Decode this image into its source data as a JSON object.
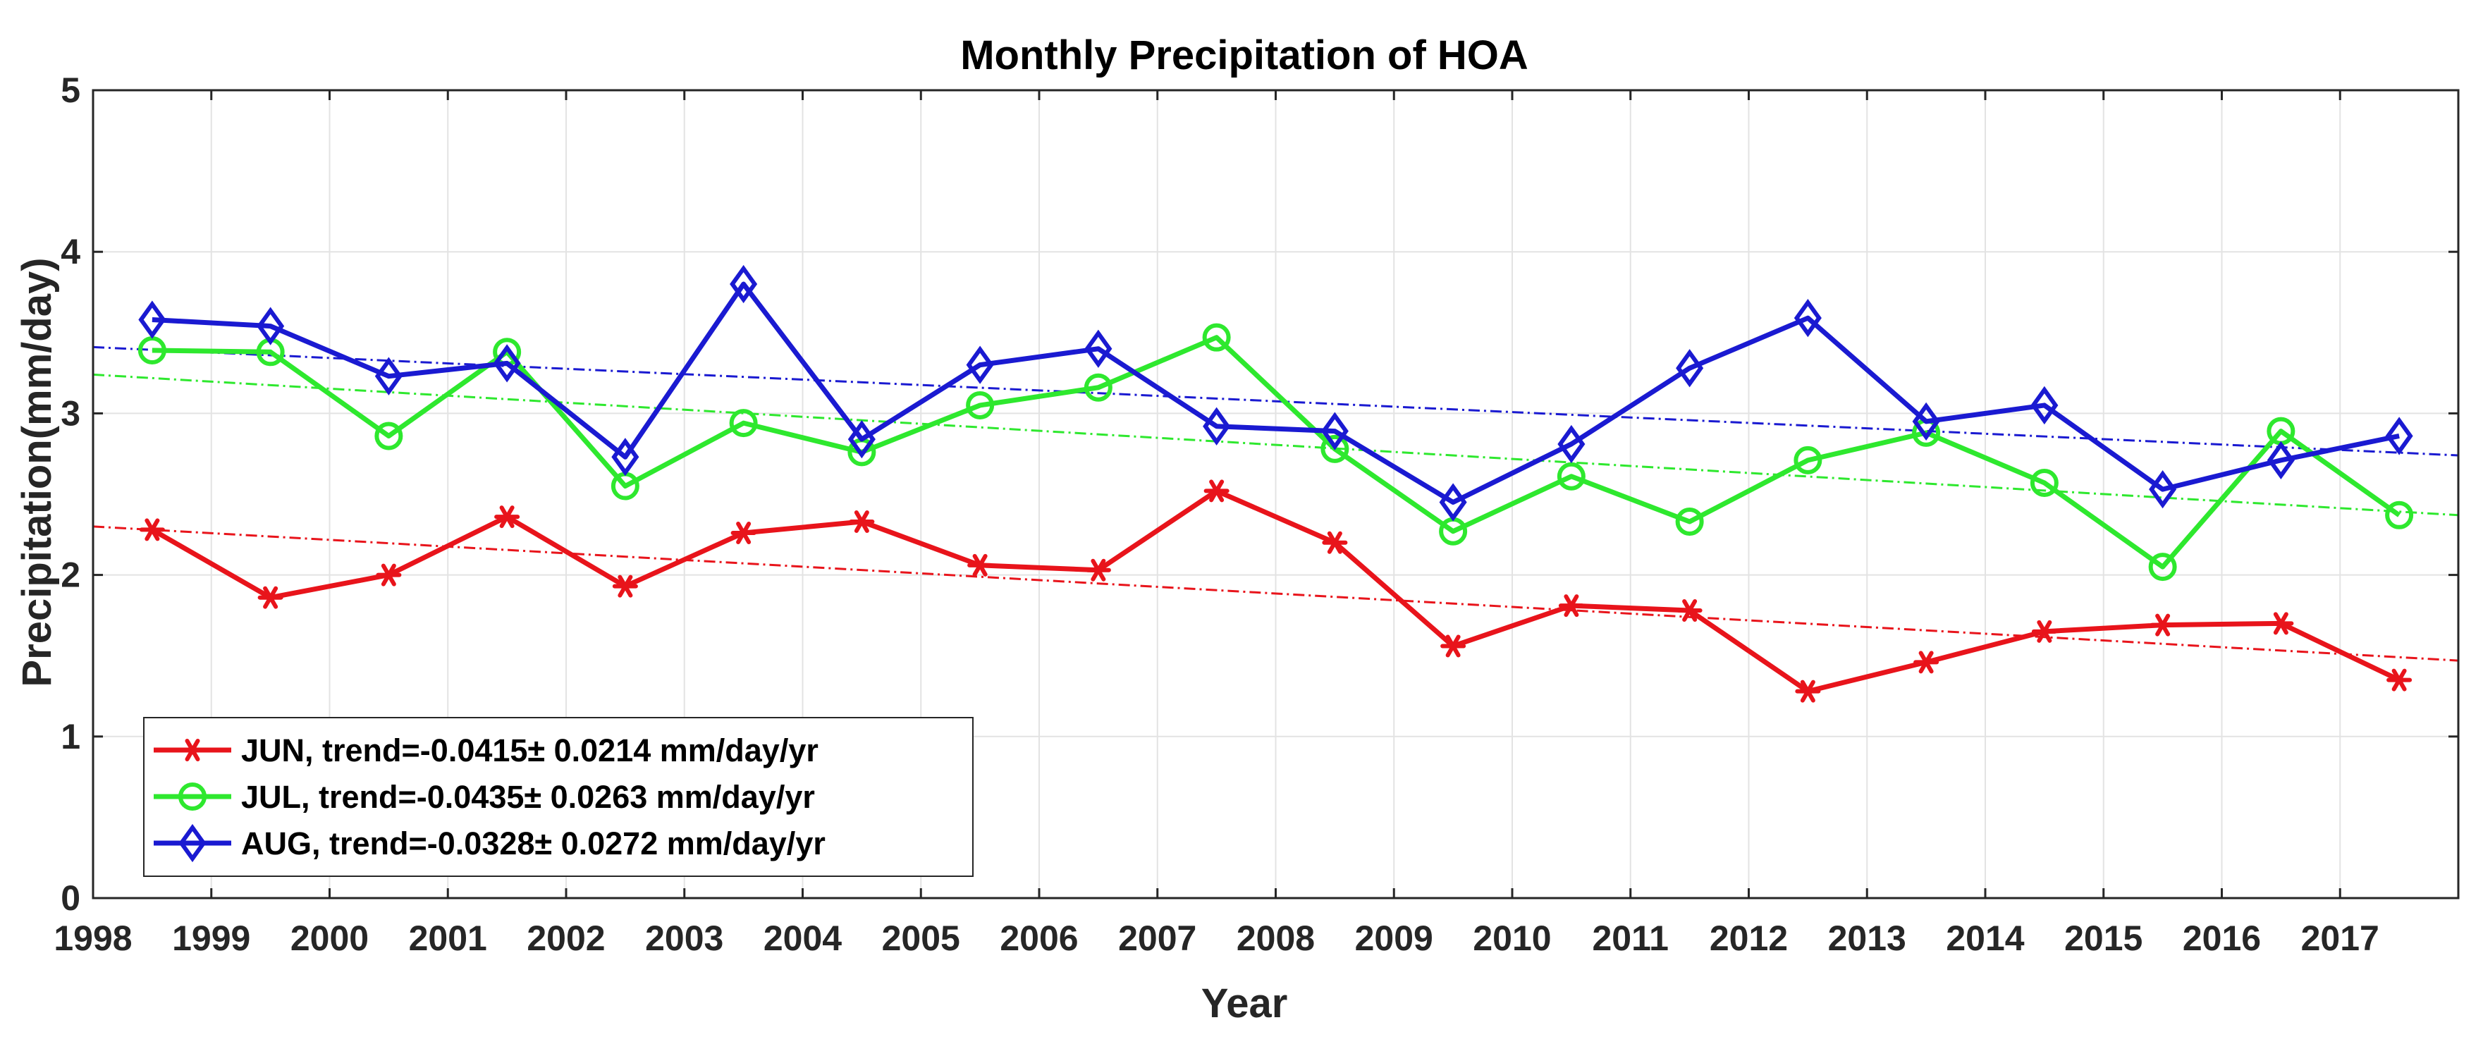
{
  "chart_data": {
    "type": "line",
    "title": "Monthly Precipitation of HOA",
    "xlabel": "Year",
    "ylabel": "Precipitation(mm/day)",
    "xlim": [
      1998,
      2018
    ],
    "ylim": [
      0,
      5
    ],
    "grid": true,
    "legend_position": "bottom-left",
    "x_ticks": [
      "1998",
      "1999",
      "2000",
      "2001",
      "2002",
      "2003",
      "2004",
      "2005",
      "2006",
      "2007",
      "2008",
      "2009",
      "2010",
      "2011",
      "2012",
      "2013",
      "2014",
      "2015",
      "2016",
      "2017"
    ],
    "y_ticks": [
      "0",
      "1",
      "2",
      "3",
      "4",
      "5"
    ],
    "series": [
      {
        "name": "JUN",
        "legend": "JUN, trend=-0.0415± 0.0214 mm/day/yr",
        "color": "#e8141b",
        "marker": "asterisk",
        "x": [
          1998.5,
          1999.5,
          2000.5,
          2001.5,
          2002.5,
          2003.5,
          2004.5,
          2005.5,
          2006.5,
          2007.5,
          2008.5,
          2009.5,
          2010.5,
          2011.5,
          2012.5,
          2013.5,
          2014.5,
          2015.5,
          2016.5,
          2017.5
        ],
        "values": [
          2.28,
          1.86,
          2.0,
          2.36,
          1.93,
          2.26,
          2.33,
          2.06,
          2.03,
          2.52,
          2.2,
          1.56,
          1.81,
          1.78,
          1.28,
          1.46,
          1.65,
          1.69,
          1.7,
          1.35
        ],
        "trend": {
          "x": [
            1998,
            2018
          ],
          "y": [
            2.3,
            1.47
          ]
        }
      },
      {
        "name": "JUL",
        "legend": "JUL, trend=-0.0435± 0.0263 mm/day/yr",
        "color": "#2ee82e",
        "marker": "circle",
        "x": [
          1998.5,
          1999.5,
          2000.5,
          2001.5,
          2002.5,
          2003.5,
          2004.5,
          2005.5,
          2006.5,
          2007.5,
          2008.5,
          2009.5,
          2010.5,
          2011.5,
          2012.5,
          2013.5,
          2014.5,
          2015.5,
          2016.5,
          2017.5
        ],
        "values": [
          3.39,
          3.38,
          2.86,
          3.38,
          2.55,
          2.94,
          2.76,
          3.05,
          3.16,
          3.47,
          2.78,
          2.27,
          2.61,
          2.33,
          2.71,
          2.88,
          2.57,
          2.05,
          2.89,
          2.37
        ],
        "trend": {
          "x": [
            1998,
            2018
          ],
          "y": [
            3.24,
            2.37
          ]
        }
      },
      {
        "name": "AUG",
        "legend": "AUG, trend=-0.0328± 0.0272 mm/day/yr",
        "color": "#1a1ad1",
        "marker": "diamond",
        "x": [
          1998.5,
          1999.5,
          2000.5,
          2001.5,
          2002.5,
          2003.5,
          2004.5,
          2005.5,
          2006.5,
          2007.5,
          2008.5,
          2009.5,
          2010.5,
          2011.5,
          2012.5,
          2013.5,
          2014.5,
          2015.5,
          2016.5,
          2017.5
        ],
        "values": [
          3.58,
          3.54,
          3.23,
          3.31,
          2.73,
          3.8,
          2.84,
          3.3,
          3.4,
          2.92,
          2.89,
          2.45,
          2.81,
          3.28,
          3.59,
          2.95,
          3.05,
          2.53,
          2.71,
          2.86
        ],
        "trend": {
          "x": [
            1998,
            2018
          ],
          "y": [
            3.41,
            2.74
          ]
        }
      }
    ]
  }
}
